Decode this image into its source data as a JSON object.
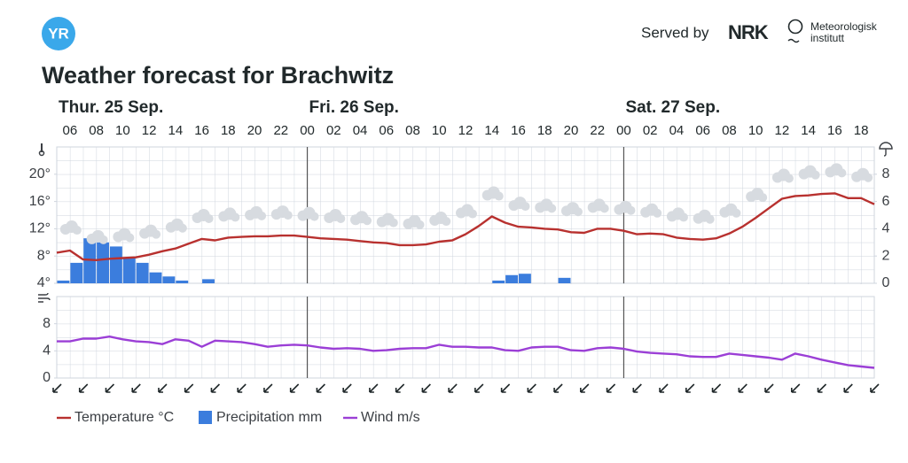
{
  "header": {
    "logo": "YR",
    "title": "Weather forecast for Brachwitz",
    "served_by": "Served by",
    "nrk": "NRK",
    "met_line1": "Meteorologisk",
    "met_line2": "institutt"
  },
  "chart_data": [
    {
      "type": "line",
      "day_labels": [
        {
          "value": 5,
          "label": "Thur. 25 Sep."
        },
        {
          "value": 24,
          "label": "Fri. 26 Sep."
        },
        {
          "value": 48,
          "label": "Sat. 27 Sep."
        }
      ],
      "x": [
        5,
        6,
        7,
        8,
        9,
        10,
        11,
        12,
        13,
        14,
        15,
        16,
        17,
        18,
        19,
        20,
        21,
        22,
        23,
        24,
        25,
        26,
        27,
        28,
        29,
        30,
        31,
        32,
        33,
        34,
        35,
        36,
        37,
        38,
        39,
        40,
        41,
        42,
        43,
        44,
        45,
        46,
        47,
        48,
        49,
        50,
        51,
        52,
        53,
        54,
        55,
        56,
        57,
        58,
        59,
        60,
        61,
        62,
        63,
        64,
        65,
        66,
        67
      ],
      "xlim": [
        5,
        67
      ],
      "xticks": [
        {
          "value": 6,
          "label": "06"
        },
        {
          "value": 8,
          "label": "08"
        },
        {
          "value": 10,
          "label": "10"
        },
        {
          "value": 12,
          "label": "12"
        },
        {
          "value": 14,
          "label": "14"
        },
        {
          "value": 16,
          "label": "16"
        },
        {
          "value": 18,
          "label": "18"
        },
        {
          "value": 20,
          "label": "20"
        },
        {
          "value": 22,
          "label": "22"
        },
        {
          "value": 24,
          "label": "00"
        },
        {
          "value": 26,
          "label": "02"
        },
        {
          "value": 28,
          "label": "04"
        },
        {
          "value": 30,
          "label": "06"
        },
        {
          "value": 32,
          "label": "08"
        },
        {
          "value": 34,
          "label": "10"
        },
        {
          "value": 36,
          "label": "12"
        },
        {
          "value": 38,
          "label": "14"
        },
        {
          "value": 40,
          "label": "16"
        },
        {
          "value": 42,
          "label": "18"
        },
        {
          "value": 44,
          "label": "20"
        },
        {
          "value": 46,
          "label": "22"
        },
        {
          "value": 48,
          "label": "00"
        },
        {
          "value": 50,
          "label": "02"
        },
        {
          "value": 52,
          "label": "04"
        },
        {
          "value": 54,
          "label": "06"
        },
        {
          "value": 56,
          "label": "08"
        },
        {
          "value": 58,
          "label": "10"
        },
        {
          "value": 60,
          "label": "12"
        },
        {
          "value": 62,
          "label": "14"
        },
        {
          "value": 64,
          "label": "16"
        },
        {
          "value": 66,
          "label": "18"
        }
      ],
      "ylim": [
        4,
        24
      ],
      "yticks": [
        {
          "value": 4,
          "label": "4°"
        },
        {
          "value": 8,
          "label": "8°"
        },
        {
          "value": 12,
          "label": "12°"
        },
        {
          "value": 16,
          "label": "16°"
        },
        {
          "value": 20,
          "label": "20°"
        }
      ],
      "y2lim": [
        0,
        10
      ],
      "y2ticks": [
        0,
        2,
        4,
        6,
        8
      ],
      "series": [
        {
          "name": "Temperature °C",
          "type": "line",
          "color": "#b8312f",
          "values": [
            8.5,
            8.8,
            7.5,
            7.4,
            7.6,
            7.7,
            7.8,
            8.2,
            8.7,
            9.1,
            9.8,
            10.5,
            10.3,
            10.7,
            10.8,
            10.9,
            10.9,
            11.0,
            11.0,
            10.8,
            10.6,
            10.5,
            10.4,
            10.2,
            10.0,
            9.9,
            9.6,
            9.6,
            9.7,
            10.1,
            10.3,
            11.2,
            12.4,
            13.8,
            12.9,
            12.3,
            12.2,
            12.0,
            11.9,
            11.5,
            11.4,
            12.0,
            12.0,
            11.7,
            11.2,
            11.3,
            11.2,
            10.7,
            10.5,
            10.4,
            10.6,
            11.3,
            12.3,
            13.6,
            15.0,
            16.4,
            16.8,
            16.9,
            17.1,
            17.2,
            16.5,
            16.5,
            15.6
          ]
        },
        {
          "name": "Precipitation mm",
          "type": "bar",
          "axis": "y2",
          "color": "#3b7ddd",
          "values": [
            0.2,
            1.5,
            3.3,
            3.0,
            2.7,
            1.9,
            1.5,
            0.8,
            0.5,
            0.2,
            0,
            0.3,
            0,
            0,
            0,
            0,
            0,
            0,
            0,
            0,
            0,
            0,
            0,
            0,
            0,
            0,
            0,
            0,
            0,
            0,
            0,
            0,
            0,
            0.2,
            0.6,
            0.7,
            0,
            0,
            0.4,
            0,
            0,
            0,
            0,
            0,
            0,
            0,
            0,
            0,
            0,
            0,
            0,
            0,
            0,
            0,
            0,
            0,
            0,
            0,
            0,
            0,
            0,
            0,
            null
          ]
        }
      ]
    },
    {
      "type": "line",
      "x": [
        5,
        6,
        7,
        8,
        9,
        10,
        11,
        12,
        13,
        14,
        15,
        16,
        17,
        18,
        19,
        20,
        21,
        22,
        23,
        24,
        25,
        26,
        27,
        28,
        29,
        30,
        31,
        32,
        33,
        34,
        35,
        36,
        37,
        38,
        39,
        40,
        41,
        42,
        43,
        44,
        45,
        46,
        47,
        48,
        49,
        50,
        51,
        52,
        53,
        54,
        55,
        56,
        57,
        58,
        59,
        60,
        61,
        62,
        63,
        64,
        65,
        66,
        67
      ],
      "xlim": [
        5,
        67
      ],
      "ylim": [
        0,
        12
      ],
      "yticks": [
        0,
        4,
        8
      ],
      "series": [
        {
          "name": "Wind m/s",
          "type": "line",
          "color": "#9b3fd6",
          "values": [
            5.4,
            5.4,
            5.8,
            5.8,
            6.1,
            5.7,
            5.4,
            5.3,
            5.0,
            5.7,
            5.5,
            4.6,
            5.5,
            5.4,
            5.3,
            5.0,
            4.6,
            4.8,
            4.9,
            4.8,
            4.5,
            4.3,
            4.4,
            4.3,
            4.0,
            4.1,
            4.3,
            4.4,
            4.4,
            4.9,
            4.6,
            4.6,
            4.5,
            4.5,
            4.1,
            4.0,
            4.5,
            4.6,
            4.6,
            4.1,
            4.0,
            4.4,
            4.5,
            4.3,
            3.9,
            3.7,
            3.6,
            3.5,
            3.2,
            3.1,
            3.1,
            3.6,
            3.4,
            3.2,
            3.0,
            2.7,
            3.6,
            3.2,
            2.7,
            2.3,
            1.9,
            1.7,
            1.5
          ]
        }
      ]
    }
  ]
}
